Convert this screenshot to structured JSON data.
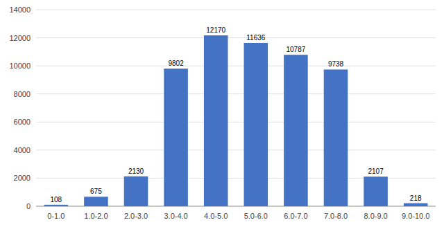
{
  "chart_data": {
    "type": "bar",
    "categories": [
      "0-1.0",
      "1.0-2.0",
      "2.0-3.0",
      "3.0-4.0",
      "4.0-5.0",
      "5.0-6.0",
      "6.0-7.0",
      "7.0-8.0",
      "8.0-9.0",
      "9.0-10.0"
    ],
    "values": [
      108,
      675,
      2130,
      9802,
      12170,
      11636,
      10787,
      9738,
      2107,
      218
    ],
    "color": "#4472C4",
    "ylim": [
      0,
      14000
    ],
    "yticks": [
      0,
      2000,
      4000,
      6000,
      8000,
      10000,
      12000,
      14000
    ],
    "grid": true,
    "data_labels": true
  }
}
